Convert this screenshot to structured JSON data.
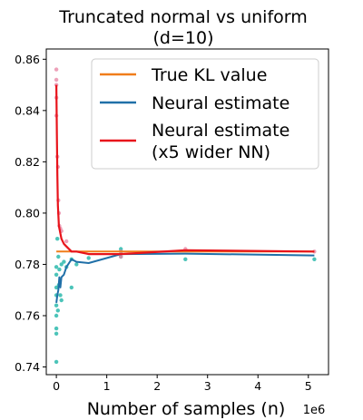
{
  "chart_data": {
    "type": "line",
    "title_line1": "Truncated normal vs uniform",
    "title_line2": "(d=10)",
    "xlabel": "Number of samples (n)",
    "x_offset_label": "1e6",
    "xlim": [
      -0.2,
      5.4
    ],
    "ylim": [
      0.737,
      0.864
    ],
    "xticks": [
      0,
      1,
      2,
      3,
      4,
      5
    ],
    "xtick_labels": [
      "0",
      "1",
      "2",
      "3",
      "4",
      "5"
    ],
    "yticks": [
      0.74,
      0.76,
      0.78,
      0.8,
      0.82,
      0.84,
      0.86
    ],
    "ytick_labels": [
      "0.74",
      "0.76",
      "0.78",
      "0.80",
      "0.82",
      "0.84",
      "0.86"
    ],
    "legend_position": "top-right",
    "series": [
      {
        "name": "True KL value",
        "color": "#f07d1a",
        "x": [
          0,
          5.12
        ],
        "y": [
          0.785,
          0.785
        ]
      },
      {
        "name": "Neural estimate",
        "color": "#2070a8",
        "x": [
          0.0,
          0.02,
          0.04,
          0.06,
          0.08,
          0.1,
          0.15,
          0.2,
          0.3,
          0.4,
          0.64,
          1.28,
          2.56,
          5.12
        ],
        "y": [
          0.765,
          0.768,
          0.77,
          0.775,
          0.771,
          0.775,
          0.776,
          0.779,
          0.782,
          0.781,
          0.7805,
          0.784,
          0.7842,
          0.7835
        ],
        "scatter_color": "#1fb5a8",
        "scatter": [
          [
            0.0,
            0.742
          ],
          [
            0.0,
            0.753
          ],
          [
            0.0,
            0.755
          ],
          [
            0.0,
            0.76
          ],
          [
            0.0,
            0.764
          ],
          [
            0.0,
            0.768
          ],
          [
            0.0,
            0.776
          ],
          [
            0.0,
            0.779
          ],
          [
            0.0,
            0.771
          ],
          [
            0.02,
            0.79
          ],
          [
            0.03,
            0.762
          ],
          [
            0.04,
            0.783
          ],
          [
            0.05,
            0.772
          ],
          [
            0.06,
            0.778
          ],
          [
            0.08,
            0.768
          ],
          [
            0.1,
            0.78
          ],
          [
            0.1,
            0.766
          ],
          [
            0.15,
            0.781
          ],
          [
            0.2,
            0.779
          ],
          [
            0.3,
            0.771
          ],
          [
            0.3,
            0.782
          ],
          [
            0.4,
            0.78
          ],
          [
            0.64,
            0.7825
          ],
          [
            1.28,
            0.786
          ],
          [
            1.28,
            0.785
          ],
          [
            1.28,
            0.783
          ],
          [
            2.56,
            0.782
          ],
          [
            5.12,
            0.782
          ]
        ]
      },
      {
        "name": "Neural estimate",
        "name_line2": "(x5 wider NN)",
        "color": "#e8141b",
        "x": [
          0.0,
          0.01,
          0.02,
          0.03,
          0.05,
          0.07,
          0.1,
          0.15,
          0.2,
          0.3,
          0.4,
          0.64,
          1.28,
          2.56,
          5.12
        ],
        "y": [
          0.85,
          0.83,
          0.815,
          0.803,
          0.795,
          0.793,
          0.79,
          0.788,
          0.787,
          0.785,
          0.785,
          0.784,
          0.784,
          0.7855,
          0.785
        ],
        "scatter_color": "#e88aa8",
        "scatter": [
          [
            0.0,
            0.856
          ],
          [
            0.0,
            0.852
          ],
          [
            0.0,
            0.85
          ],
          [
            0.0,
            0.845
          ],
          [
            0.0,
            0.838
          ],
          [
            0.02,
            0.822
          ],
          [
            0.03,
            0.818
          ],
          [
            0.04,
            0.805
          ],
          [
            0.05,
            0.8
          ],
          [
            0.06,
            0.795
          ],
          [
            0.08,
            0.794
          ],
          [
            0.1,
            0.793
          ],
          [
            0.2,
            0.789
          ],
          [
            1.28,
            0.785
          ],
          [
            1.28,
            0.783
          ],
          [
            2.56,
            0.786
          ],
          [
            5.12,
            0.785
          ]
        ]
      }
    ]
  }
}
